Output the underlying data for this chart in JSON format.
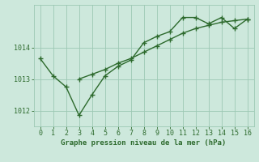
{
  "x": [
    0,
    1,
    2,
    3,
    4,
    5,
    6,
    7,
    8,
    9,
    10,
    11,
    12,
    13,
    14,
    15,
    16
  ],
  "y_line1": [
    1013.65,
    1013.1,
    1012.75,
    1011.85,
    1012.5,
    1013.1,
    1013.4,
    1013.6,
    1014.15,
    1014.35,
    1014.5,
    1014.95,
    1014.95,
    1014.75,
    1014.95,
    1014.6,
    1014.9
  ],
  "y_line2": [
    null,
    null,
    null,
    1013.0,
    1013.15,
    1013.3,
    1013.5,
    1013.65,
    1013.85,
    1014.05,
    1014.25,
    1014.45,
    1014.6,
    1014.7,
    1014.8,
    1014.85,
    1014.9
  ],
  "color": "#2d6a2d",
  "bg_color": "#cde8dc",
  "grid_color": "#9dc8b4",
  "xlabel": "Graphe pression niveau de la mer (hPa)",
  "xlim": [
    -0.5,
    16.5
  ],
  "ylim": [
    1011.5,
    1015.35
  ],
  "yticks": [
    1012,
    1013,
    1014
  ],
  "xticks": [
    0,
    1,
    2,
    3,
    4,
    5,
    6,
    7,
    8,
    9,
    10,
    11,
    12,
    13,
    14,
    15,
    16
  ],
  "linewidth": 1.0,
  "markersize": 4.0
}
